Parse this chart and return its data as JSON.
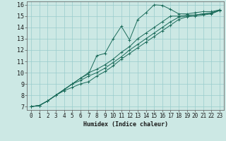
{
  "background_color": "#cce8e4",
  "grid_color": "#99cccc",
  "line_color": "#1a6b5a",
  "xlabel": "Humidex (Indice chaleur)",
  "xlim": [
    -0.5,
    23.5
  ],
  "ylim": [
    6.7,
    16.3
  ],
  "xticks": [
    0,
    1,
    2,
    3,
    4,
    5,
    6,
    7,
    8,
    9,
    10,
    11,
    12,
    13,
    14,
    15,
    16,
    17,
    18,
    19,
    20,
    21,
    22,
    23
  ],
  "yticks": [
    7,
    8,
    9,
    10,
    11,
    12,
    13,
    14,
    15,
    16
  ],
  "series": [
    {
      "x": [
        0,
        1,
        2,
        3,
        4,
        5,
        6,
        7,
        8,
        9,
        10,
        11,
        12,
        13,
        14,
        15,
        16,
        17,
        18,
        19,
        20,
        21,
        22,
        23
      ],
      "y": [
        7.0,
        7.1,
        7.5,
        8.0,
        8.5,
        9.0,
        9.5,
        9.9,
        11.5,
        11.7,
        13.0,
        14.1,
        12.9,
        14.7,
        15.3,
        16.0,
        15.95,
        15.6,
        15.2,
        15.2,
        15.3,
        15.4,
        15.4,
        15.55
      ]
    },
    {
      "x": [
        0,
        1,
        2,
        3,
        4,
        5,
        6,
        7,
        8,
        9,
        10,
        11,
        12,
        13,
        14,
        15,
        16,
        17,
        18,
        19,
        20,
        21,
        22,
        23
      ],
      "y": [
        7.0,
        7.1,
        7.5,
        8.0,
        8.5,
        9.0,
        9.5,
        10.0,
        10.3,
        10.7,
        11.2,
        11.8,
        12.3,
        13.0,
        13.5,
        14.0,
        14.5,
        15.0,
        15.0,
        15.1,
        15.1,
        15.2,
        15.3,
        15.55
      ]
    },
    {
      "x": [
        0,
        1,
        2,
        3,
        4,
        5,
        6,
        7,
        8,
        9,
        10,
        11,
        12,
        13,
        14,
        15,
        16,
        17,
        18,
        19,
        20,
        21,
        22,
        23
      ],
      "y": [
        7.0,
        7.1,
        7.5,
        8.0,
        8.5,
        9.0,
        9.3,
        9.7,
        10.0,
        10.4,
        10.9,
        11.4,
        12.0,
        12.5,
        13.0,
        13.5,
        14.0,
        14.5,
        14.9,
        15.0,
        15.1,
        15.2,
        15.25,
        15.5
      ]
    },
    {
      "x": [
        0,
        1,
        2,
        3,
        4,
        5,
        6,
        7,
        8,
        9,
        10,
        11,
        12,
        13,
        14,
        15,
        16,
        17,
        18,
        19,
        20,
        21,
        22,
        23
      ],
      "y": [
        7.0,
        7.1,
        7.5,
        8.0,
        8.4,
        8.7,
        9.0,
        9.2,
        9.7,
        10.1,
        10.6,
        11.2,
        11.7,
        12.2,
        12.7,
        13.2,
        13.7,
        14.2,
        14.7,
        14.95,
        15.0,
        15.1,
        15.2,
        15.5
      ]
    }
  ],
  "xlabel_fontsize": 6.0,
  "tick_fontsize": 5.5
}
